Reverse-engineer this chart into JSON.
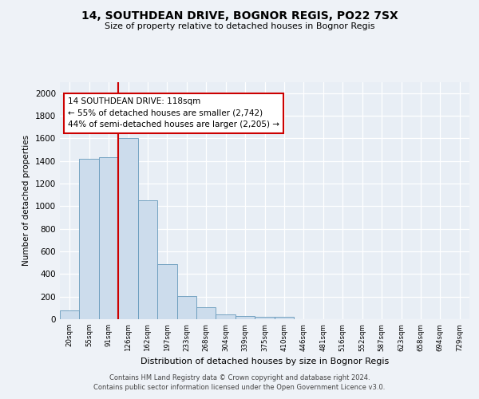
{
  "title_line1": "14, SOUTHDEAN DRIVE, BOGNOR REGIS, PO22 7SX",
  "title_line2": "Size of property relative to detached houses in Bognor Regis",
  "xlabel": "Distribution of detached houses by size in Bognor Regis",
  "ylabel": "Number of detached properties",
  "bin_labels": [
    "20sqm",
    "55sqm",
    "91sqm",
    "126sqm",
    "162sqm",
    "197sqm",
    "233sqm",
    "268sqm",
    "304sqm",
    "339sqm",
    "375sqm",
    "410sqm",
    "446sqm",
    "481sqm",
    "516sqm",
    "552sqm",
    "587sqm",
    "623sqm",
    "658sqm",
    "694sqm",
    "729sqm"
  ],
  "bar_heights": [
    80,
    1420,
    1430,
    1600,
    1050,
    490,
    205,
    105,
    40,
    28,
    22,
    18,
    0,
    0,
    0,
    0,
    0,
    0,
    0,
    0,
    0
  ],
  "bar_color": "#ccdcec",
  "bar_edge_color": "#6699bb",
  "vline_x": 2.5,
  "vline_color": "#cc0000",
  "annotation_text": "14 SOUTHDEAN DRIVE: 118sqm\n← 55% of detached houses are smaller (2,742)\n44% of semi-detached houses are larger (2,205) →",
  "annotation_box_color": "#ffffff",
  "annotation_box_edge": "#cc0000",
  "ylim": [
    0,
    2100
  ],
  "yticks": [
    0,
    200,
    400,
    600,
    800,
    1000,
    1200,
    1400,
    1600,
    1800,
    2000
  ],
  "footer_text": "Contains HM Land Registry data © Crown copyright and database right 2024.\nContains public sector information licensed under the Open Government Licence v3.0.",
  "bg_color": "#eef2f7",
  "plot_bg_color": "#e8eef5"
}
